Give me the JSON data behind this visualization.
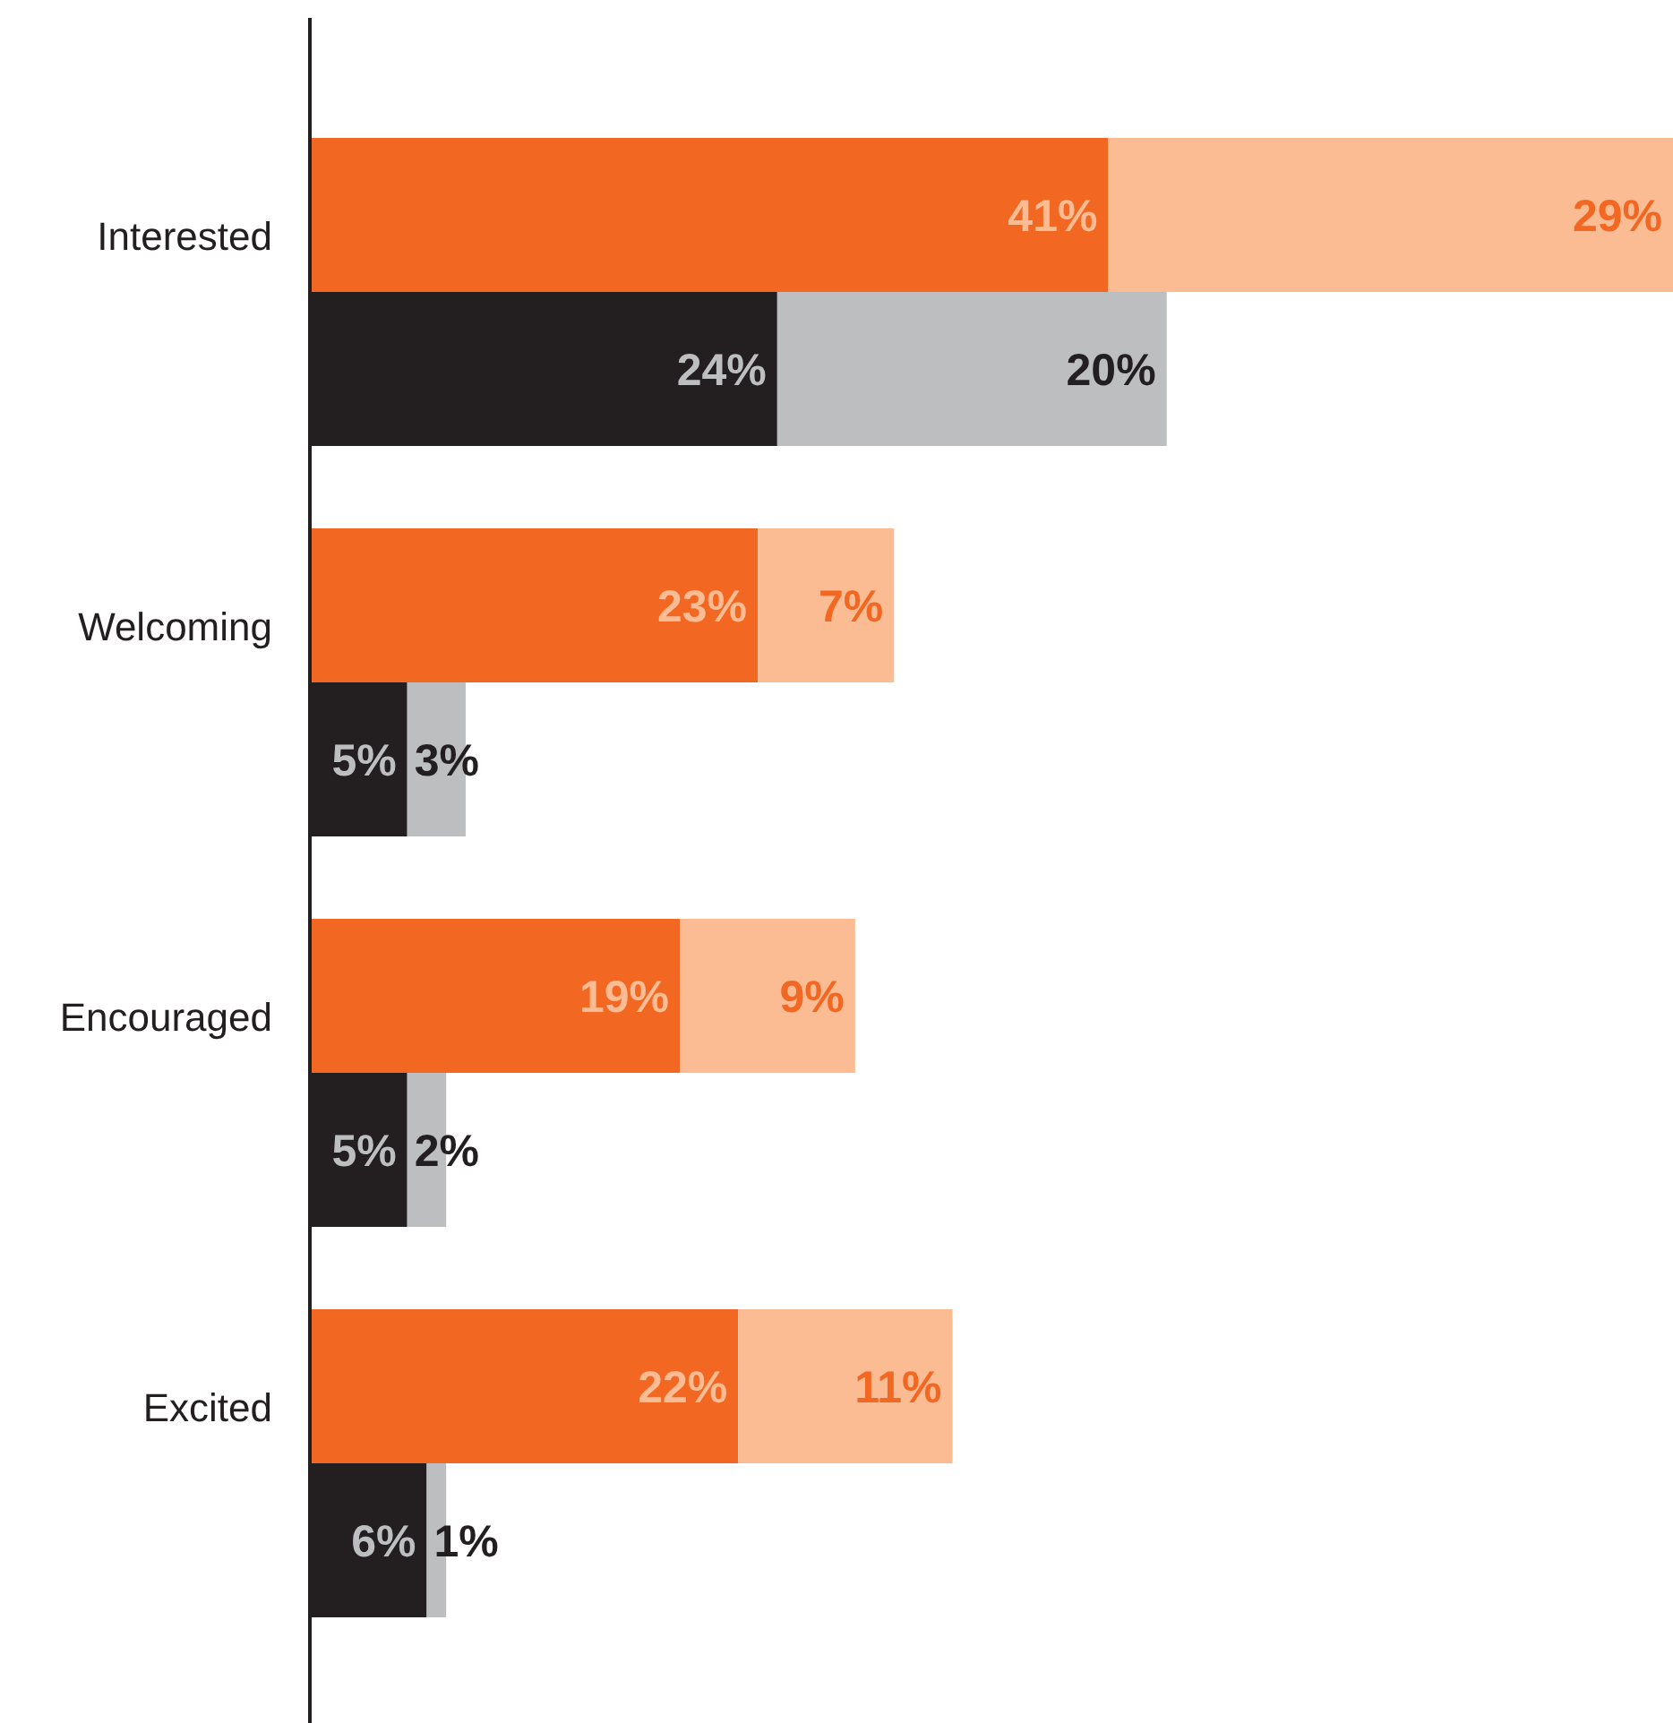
{
  "chart_data": {
    "type": "bar",
    "orientation": "horizontal",
    "stacked": true,
    "categories": [
      "Interested",
      null,
      "Welcoming",
      null,
      "Encouraged",
      null,
      "Excited",
      null
    ],
    "series": [
      {
        "color": "#f26722",
        "values": [
          41,
          null,
          23,
          null,
          19,
          null,
          22,
          null
        ],
        "value_labels": [
          "41%",
          null,
          "23%",
          null,
          "19%",
          null,
          "22%",
          null
        ]
      },
      {
        "color": "#fbbc94",
        "values": [
          29,
          null,
          7,
          null,
          9,
          null,
          11,
          null
        ],
        "value_labels": [
          "29%",
          null,
          "7%",
          null,
          "9%",
          null,
          "11%",
          null
        ]
      },
      {
        "color": "#231f20",
        "values": [
          null,
          24,
          null,
          5,
          null,
          5,
          null,
          6
        ],
        "value_labels": [
          null,
          "24%",
          null,
          "5%",
          null,
          "5%",
          null,
          "6%"
        ]
      },
      {
        "color": "#bcbec0",
        "values": [
          null,
          20,
          null,
          3,
          null,
          2,
          null,
          1
        ],
        "value_labels": [
          null,
          "20%",
          null,
          "3%",
          null,
          "2%",
          null,
          "1%"
        ]
      }
    ]
  }
}
